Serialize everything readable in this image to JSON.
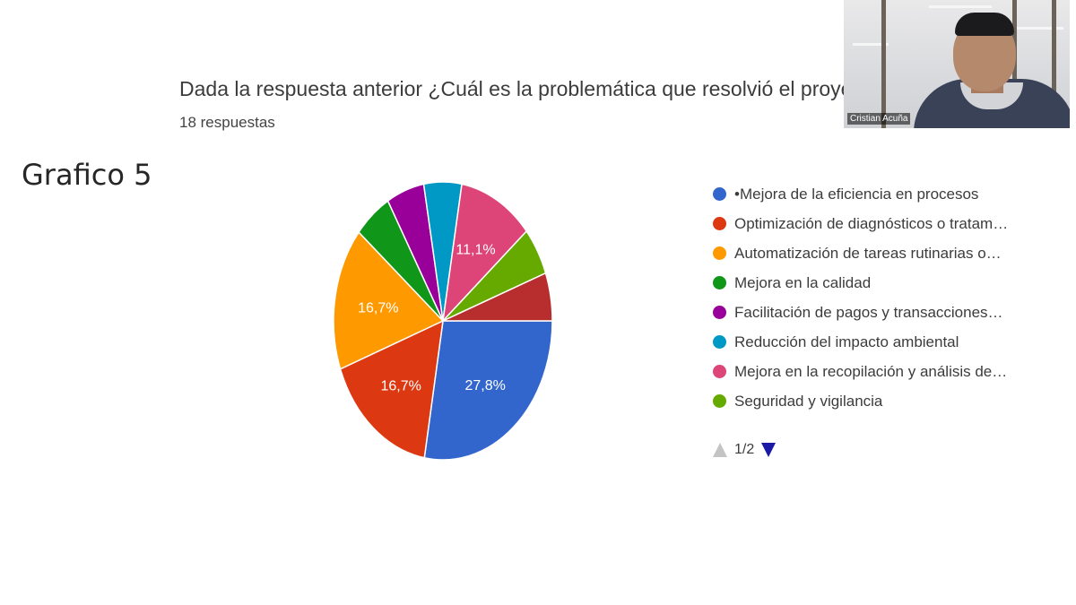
{
  "slide": {
    "label": "Grafico 5"
  },
  "question": {
    "title": "Dada la respuesta anterior ¿Cuál es la problemática que resolvió el proyecto d",
    "responses": "18 respuestas"
  },
  "chart_data": {
    "type": "pie",
    "categories": [
      "•Mejora de la eficiencia en procesos",
      "Optimización de diagnósticos o tratam…",
      "Automatización de tareas rutinarias o…",
      "Mejora en la calidad",
      "Facilitación de pagos y transacciones…",
      "Reducción del impacto ambiental",
      "Mejora en la recopilación y análisis de…",
      "Seguridad y vigilancia",
      "",
      ""
    ],
    "values": [
      27.8,
      16.7,
      16.7,
      5.6,
      5.6,
      5.6,
      11.1,
      5.6,
      0,
      5.6
    ],
    "data_labels": [
      "27,8%",
      "16,7%",
      "16,7%",
      "",
      "",
      "",
      "11,1%",
      "",
      "",
      ""
    ],
    "colors": [
      "#3366cc",
      "#dc3912",
      "#ff9900",
      "#109618",
      "#990099",
      "#0099c6",
      "#dd4477",
      "#66aa00",
      "#b82e2e",
      "#b82e2e"
    ],
    "legend_position": "right",
    "legend_visible_count": 8
  },
  "legend_pager": {
    "text": "1/2"
  },
  "webcam": {
    "name": "Cristian Acuña"
  }
}
